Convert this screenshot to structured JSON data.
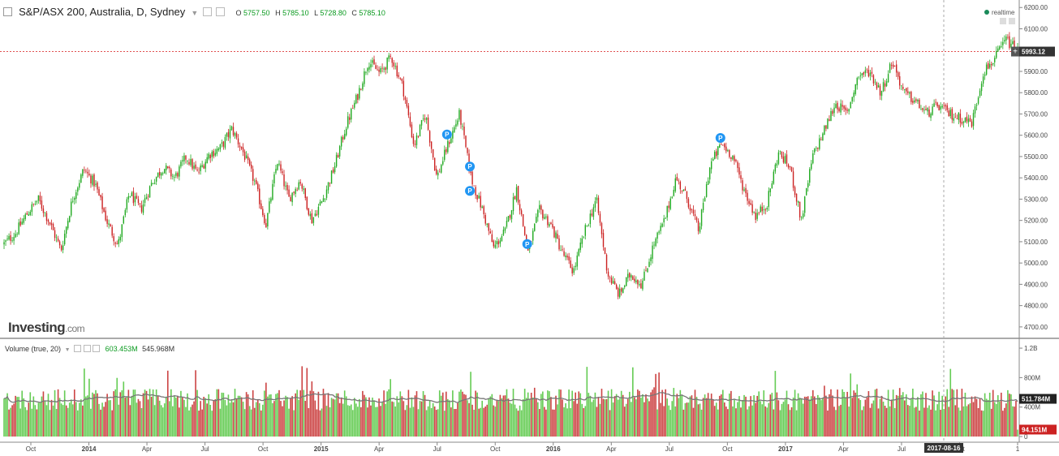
{
  "header": {
    "title": "S&P/ASX 200, Australia, D, Sydney",
    "ohlc": [
      {
        "k": "O",
        "v": "5757.50"
      },
      {
        "k": "H",
        "v": "5785.10"
      },
      {
        "k": "L",
        "v": "5728.80"
      },
      {
        "k": "C",
        "v": "5785.10"
      }
    ],
    "realtime": "realtime"
  },
  "brand": {
    "logo_main": "Investing",
    "logo_suffix": ".com"
  },
  "volume_panel": {
    "title": "Volume (true, 20)",
    "value_1": "603.453M",
    "value_2": "545.968M"
  },
  "price_tag": "5993.12",
  "volume_tags": {
    "ma": "511.784M",
    "last": "94.151M"
  },
  "crosshair_date": "2017-08-16",
  "colors": {
    "up": "#22aa22",
    "down": "#cc2222",
    "vol_up": "#66cc55",
    "vol_down": "#cc4444",
    "ma": "#777777",
    "resistance": "#e05050",
    "marker": "#2196f3"
  },
  "chart_data": [
    {
      "type": "candlestick",
      "y_ticks": [
        "6200.00",
        "6100.00",
        "6000.00",
        "5900.00",
        "5800.00",
        "5700.00",
        "5600.00",
        "5500.00",
        "5400.00",
        "5300.00",
        "5200.00",
        "5100.00",
        "5000.00",
        "4900.00",
        "4800.00",
        "4700.00"
      ],
      "ylim": [
        4650,
        6220
      ],
      "x_ticks": [
        "Oct",
        "2014",
        "Apr",
        "Jul",
        "Oct",
        "2015",
        "Apr",
        "Jul",
        "Oct",
        "2016",
        "Apr",
        "Jul",
        "Oct",
        "2017",
        "Apr",
        "Jul",
        "Oct",
        "1"
      ],
      "resistance_level": 5993.12,
      "series": [
        {
          "values": [
            5090,
            5140,
            5230,
            5300,
            5190,
            5060,
            5300,
            5440,
            5370,
            5200,
            5080,
            5330,
            5250,
            5380,
            5450,
            5400,
            5500,
            5420,
            5510,
            5540,
            5630,
            5520,
            5380,
            5180,
            5480,
            5300,
            5390,
            5200,
            5300,
            5450,
            5640,
            5780,
            5950,
            5890,
            5970,
            5830,
            5550,
            5700,
            5400,
            5560,
            5700,
            5400,
            5250,
            5070,
            5150,
            5350,
            5050,
            5250,
            5180,
            5050,
            4960,
            5150,
            5300,
            4950,
            4850,
            4950,
            4900,
            5080,
            5200,
            5400,
            5300,
            5150,
            5460,
            5560,
            5500,
            5340,
            5220,
            5280,
            5520,
            5450,
            5200,
            5500,
            5620,
            5750,
            5700,
            5880,
            5900,
            5800,
            5950,
            5800,
            5760,
            5700,
            5740,
            5700,
            5680,
            5660,
            5900,
            5960,
            6050,
            5993
          ]
        }
      ],
      "markers": [
        {
          "label": "P",
          "x_index": 39
        },
        {
          "label": "P",
          "x_index": 41
        },
        {
          "label": "P",
          "x_index": 41
        },
        {
          "label": "P",
          "x_index": 46
        },
        {
          "label": "P",
          "x_index": 63
        }
      ]
    },
    {
      "type": "bar",
      "title": "Volume (true, 20)",
      "y_ticks": [
        "1.2B",
        "800M",
        "400M",
        "0"
      ],
      "ylim": [
        0,
        1300
      ]
    }
  ]
}
